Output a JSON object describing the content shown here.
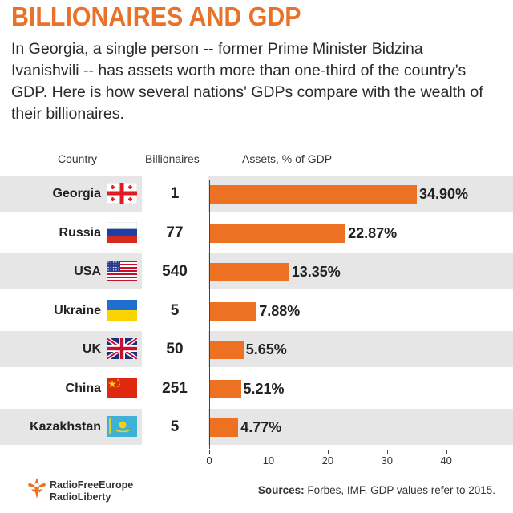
{
  "title": "BILLIONAIRES AND GDP",
  "intro": "In Georgia, a single person -- former Prime Minister Bidzina Ivanishvili -- has assets worth more than one-third of the country's GDP.  Here is how several nations' GDPs compare with the wealth of their billionaires.",
  "headers": {
    "country": "Country",
    "billionaires": "Billionaires",
    "assets": "Assets, % of GDP"
  },
  "chart_data": {
    "type": "bar",
    "orientation": "horizontal",
    "categories": [
      "Georgia",
      "Russia",
      "USA",
      "Ukraine",
      "UK",
      "China",
      "Kazakhstan"
    ],
    "values": [
      34.9,
      22.87,
      13.35,
      7.88,
      5.65,
      5.21,
      4.77
    ],
    "value_labels": [
      "34.90%",
      "22.87%",
      "13.35%",
      "7.88%",
      "5.65%",
      "5.21%",
      "4.77%"
    ],
    "billionaires": [
      "1",
      "77",
      "540",
      "5",
      "50",
      "251",
      "5"
    ],
    "xlabel": "Assets, % of GDP",
    "xlim": [
      0,
      45
    ],
    "ticks": [
      0,
      10,
      20,
      30,
      40
    ],
    "tick_labels": [
      "0",
      "10",
      "20",
      "30",
      "40"
    ],
    "bar_color": "#ec7123",
    "grid": false
  },
  "flags": [
    "georgia-flag-icon",
    "russia-flag-icon",
    "usa-flag-icon",
    "ukraine-flag-icon",
    "uk-flag-icon",
    "china-flag-icon",
    "kazakhstan-flag-icon"
  ],
  "colors": {
    "title": "#e8722a",
    "bar": "#ec7123",
    "row_shade": "#e6e6e6"
  },
  "footer": {
    "logo_line1": "RadioFreeEurope",
    "logo_line2": "RadioLiberty",
    "sources_label": "Sources:",
    "sources_text": " Forbes, IMF. GDP values refer to 2015."
  }
}
